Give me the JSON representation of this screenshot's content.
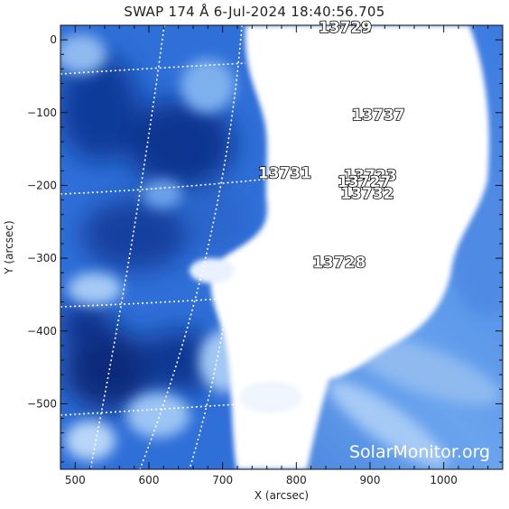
{
  "title": "SWAP 174 Å  6-Jul-2024 18:40:56.705",
  "x_axis": {
    "label": "X (arcsec)",
    "range": [
      480,
      1080
    ],
    "ticks": [
      500,
      600,
      700,
      800,
      900,
      1000
    ],
    "tick_labels": [
      "500",
      "600",
      "700",
      "800",
      "900",
      "1000"
    ]
  },
  "y_axis": {
    "label": "Y (arcsec)",
    "range": [
      -590,
      20
    ],
    "ticks": [
      0,
      -100,
      -200,
      -300,
      -400,
      -500
    ],
    "tick_labels": [
      "0",
      "−100",
      "−200",
      "−300",
      "−400",
      "−500"
    ]
  },
  "active_regions": [
    {
      "label": "13729",
      "x": 830,
      "y": 10
    },
    {
      "label": "13737",
      "x": 875,
      "y": -110
    },
    {
      "label": "13731",
      "x": 748,
      "y": -190
    },
    {
      "label": "13723",
      "x": 864,
      "y": -193
    },
    {
      "label": "13727",
      "x": 856,
      "y": -202
    },
    {
      "label": "13732",
      "x": 860,
      "y": -218
    },
    {
      "label": "13728",
      "x": 822,
      "y": -313
    }
  ],
  "watermark": "SolarMonitor.org",
  "colors": {
    "disk_dark": "#0a2a7a",
    "disk_mid": "#2f6fd8",
    "disk_light": "#9cc4f4",
    "saturated": "#ffffff",
    "grid": "#ffffff"
  }
}
